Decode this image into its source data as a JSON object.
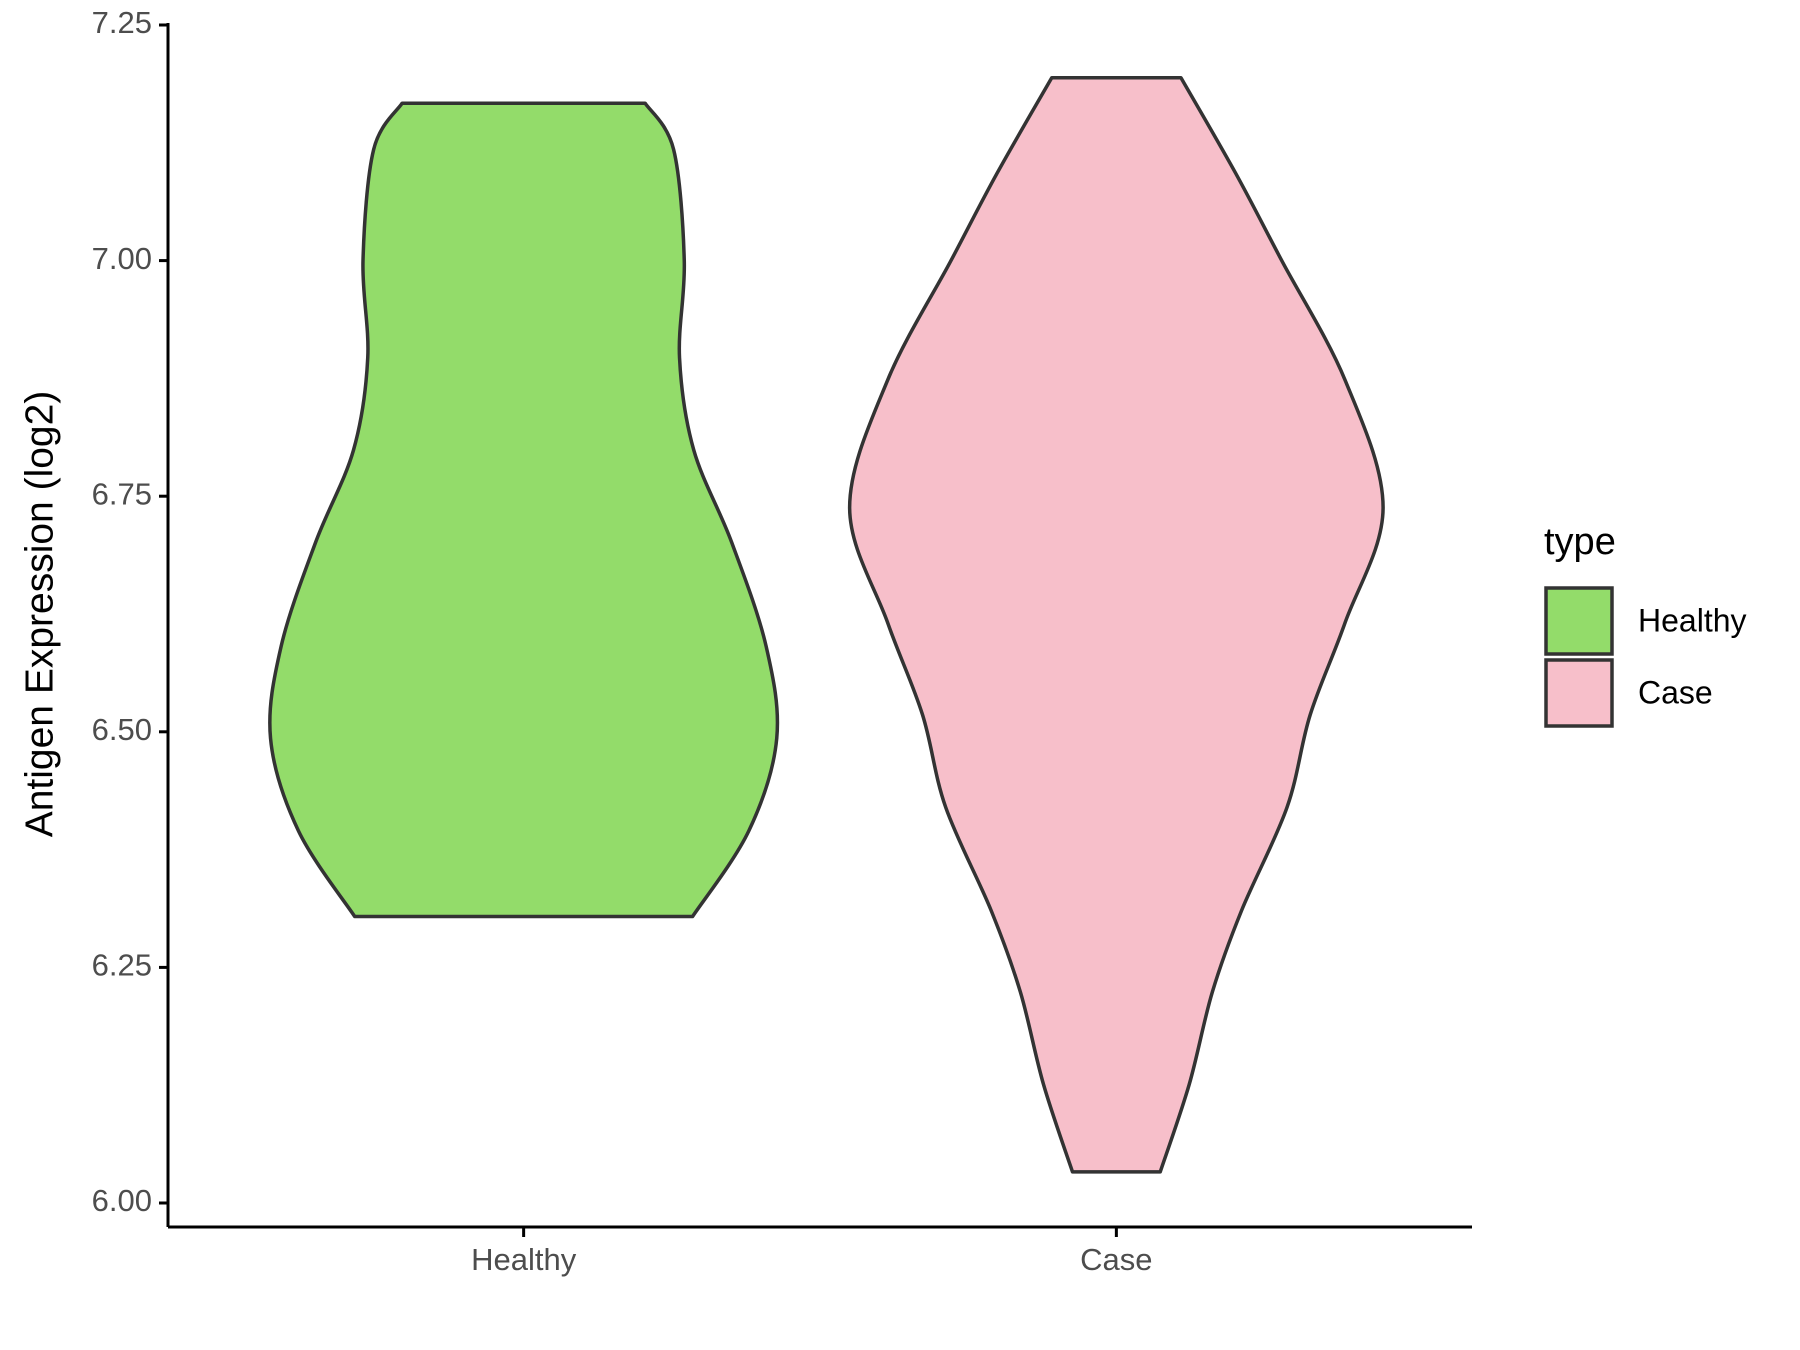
{
  "chart_data": {
    "type": "violin",
    "ylabel": "Antigen Expression (log2)",
    "categories": [
      "Healthy",
      "Case"
    ],
    "legend_title": "type",
    "legend": "right",
    "ylim": [
      6.0,
      7.25
    ],
    "yticks": [
      {
        "value": 6.0,
        "label": "6.00"
      },
      {
        "value": 6.25,
        "label": "6.25"
      },
      {
        "value": 6.5,
        "label": "6.50"
      },
      {
        "value": 6.75,
        "label": "6.75"
      },
      {
        "value": 7.0,
        "label": "7.00"
      },
      {
        "value": 7.25,
        "label": "7.25"
      }
    ],
    "series": [
      {
        "name": "Healthy",
        "color": "#93dc6a",
        "values": [
          7.167,
          7.118,
          7.0,
          6.897,
          6.799,
          6.701,
          6.591,
          6.493,
          6.395,
          6.304
        ],
        "density": [
          0.205,
          0.253,
          0.271,
          0.263,
          0.287,
          0.351,
          0.409,
          0.427,
          0.38,
          0.285
        ]
      },
      {
        "name": "Case",
        "color": "#f7bfca",
        "values": [
          7.194,
          7.093,
          7.0,
          6.873,
          6.738,
          6.616,
          6.518,
          6.42,
          6.31,
          6.224,
          6.126,
          6.033
        ],
        "density": [
          0.109,
          0.201,
          0.279,
          0.386,
          0.45,
          0.386,
          0.327,
          0.288,
          0.211,
          0.162,
          0.123,
          0.074
        ]
      }
    ]
  }
}
